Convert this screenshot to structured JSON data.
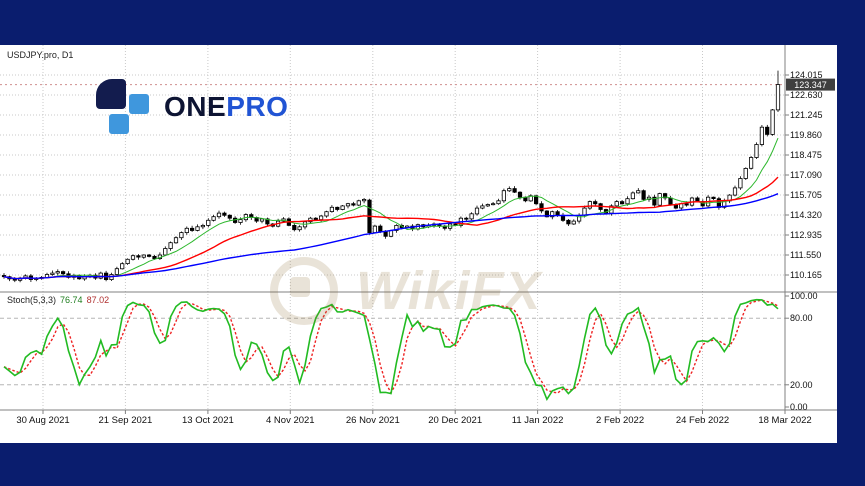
{
  "frame": {
    "background_color": "#0a1d6e"
  },
  "chart_header": {
    "symbol_label": "USDJPY.pro, D1"
  },
  "logo": {
    "word_dark": "ONE",
    "word_blue": "PRO",
    "dark_color": "#0d1433",
    "blue_color": "#2154d4",
    "icon_dark": "#131c4e",
    "icon_light": "#3f97dd"
  },
  "watermark": {
    "text": "WikiFX",
    "color": "#8a6a30"
  },
  "indicator": {
    "name": "Stoch(5,3,3)",
    "main_value": "76.74",
    "signal_value": "87.02"
  },
  "colors": {
    "grid": "#c9c9c9",
    "axis": "#808080",
    "candle_bull_fill": "#ffffff",
    "candle_bear_fill": "#000000",
    "candle_outline": "#000000",
    "price_tag_bg": "#3f3f3f",
    "price_tag_text": "#ffffff",
    "bid_line": "#cf8f8f",
    "stoch_level_line": "#b5b5b5"
  },
  "chart_data": [
    {
      "type": "candlestick",
      "title": "USDJPY.pro, D1",
      "legend_position": "none",
      "grid": true,
      "price_axis": {
        "gridline_values": [
          124.015,
          122.63,
          121.245,
          119.86,
          118.475,
          117.09,
          115.705,
          114.32,
          112.935,
          111.55,
          110.165
        ],
        "labels": [
          "124.015",
          "122.630",
          "121.245",
          "119.860",
          "118.475",
          "117.090",
          "115.705",
          "114.320",
          "112.935",
          "111.550",
          "110.165"
        ],
        "current_price": 123.347,
        "current_price_label": "123.347"
      },
      "x_axis_dates": [
        "30 Aug 2021",
        "21 Sep 2021",
        "13 Oct 2021",
        "4 Nov 2021",
        "26 Nov 2021",
        "20 Dec 2021",
        "11 Jan 2022",
        "2 Feb 2022",
        "24 Feb 2022",
        "18 Mar 2022"
      ],
      "ylim": [
        109.0,
        126.1
      ],
      "closes": [
        110.05,
        109.9,
        109.8,
        109.95,
        110.1,
        109.85,
        109.95,
        110.0,
        110.2,
        110.3,
        110.4,
        110.25,
        110.0,
        110.1,
        109.9,
        110.05,
        110.15,
        109.95,
        110.3,
        109.85,
        110.2,
        110.6,
        110.95,
        111.25,
        111.5,
        111.4,
        111.55,
        111.45,
        111.3,
        111.55,
        112.0,
        112.4,
        112.75,
        113.1,
        113.4,
        113.25,
        113.5,
        113.6,
        113.95,
        114.2,
        114.45,
        114.3,
        114.1,
        113.8,
        114.0,
        114.35,
        114.15,
        113.9,
        114.05,
        113.7,
        113.55,
        113.9,
        114.05,
        113.6,
        113.3,
        113.5,
        113.85,
        114.1,
        114.0,
        114.25,
        114.55,
        114.85,
        114.7,
        114.95,
        115.1,
        115.0,
        115.3,
        115.4,
        113.1,
        113.55,
        113.2,
        112.85,
        113.25,
        113.6,
        113.45,
        113.55,
        113.35,
        113.65,
        113.5,
        113.6,
        113.7,
        113.55,
        113.4,
        113.7,
        113.6,
        114.1,
        114.05,
        114.4,
        114.8,
        114.95,
        115.05,
        115.1,
        115.3,
        116.0,
        116.15,
        115.9,
        115.55,
        115.3,
        115.65,
        115.1,
        114.6,
        114.2,
        114.55,
        114.3,
        113.95,
        113.7,
        113.9,
        114.3,
        114.8,
        115.25,
        115.1,
        114.7,
        114.45,
        114.95,
        115.25,
        115.1,
        115.45,
        115.85,
        116.0,
        115.4,
        115.55,
        115.0,
        115.8,
        115.5,
        115.05,
        114.8,
        115.1,
        115.0,
        115.5,
        115.25,
        114.95,
        115.55,
        115.45,
        114.85,
        115.3,
        115.7,
        116.2,
        116.85,
        117.55,
        118.3,
        119.2,
        120.4,
        119.9,
        121.6,
        123.35
      ],
      "candle_overrides": [
        {
          "i": 68,
          "o": 115.35,
          "h": 115.45,
          "l": 112.95
        },
        {
          "i": 144,
          "h": 124.32,
          "l": 121.45
        }
      ],
      "overlays": [
        {
          "name": "ma-fast",
          "period": 8,
          "color": "#2eb82e",
          "width": 1.0
        },
        {
          "name": "ma-mid",
          "period": 21,
          "color": "#ff0000",
          "width": 1.4
        },
        {
          "name": "ma-slow",
          "period": 55,
          "color": "#0000ff",
          "width": 1.4
        }
      ]
    },
    {
      "type": "line",
      "title": "Stoch(5,3,3)",
      "subtitle_values": "76.74 87.02",
      "levels": [
        100,
        80,
        20,
        0
      ],
      "level_labels": [
        "100.00",
        "80.00",
        "20.00",
        "0.00"
      ],
      "dashed_levels": [
        80,
        20
      ],
      "main_color": "#22bb22",
      "signal_color": "#ee2222",
      "kperiod": 5,
      "slowing": 3,
      "dperiod": 3,
      "ylim": [
        0,
        100
      ]
    }
  ]
}
